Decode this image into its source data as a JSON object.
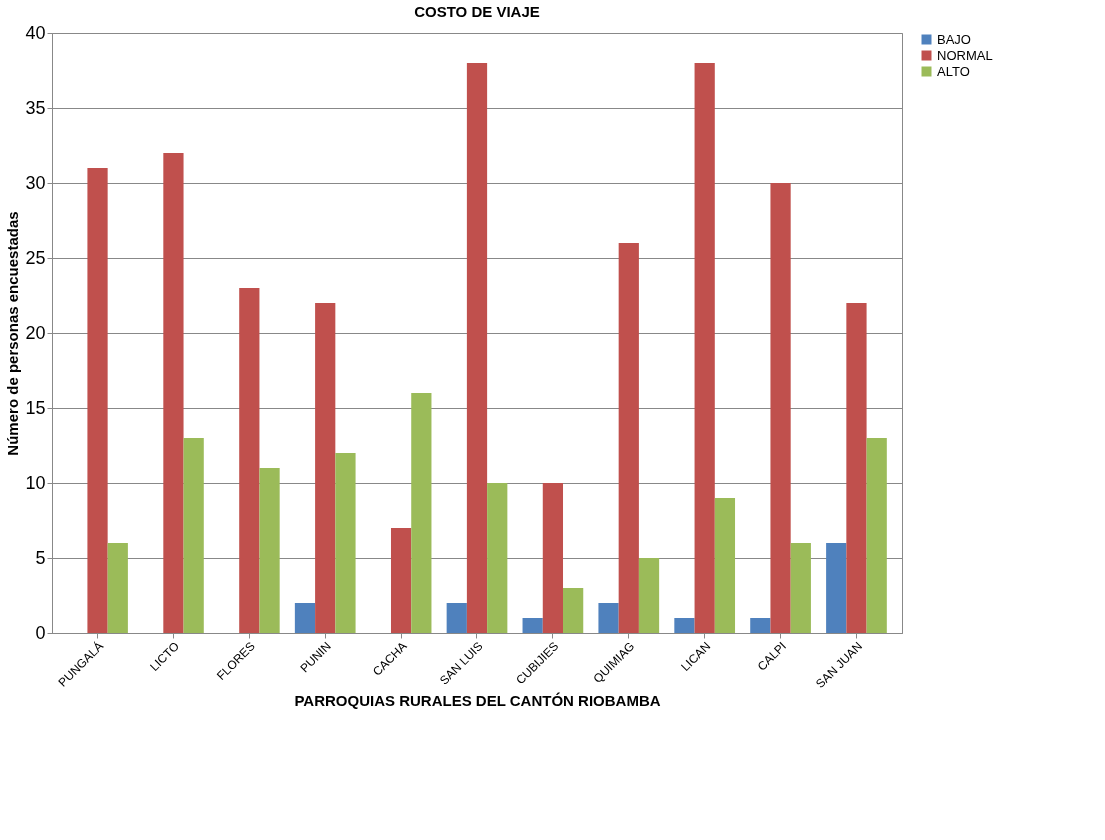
{
  "chart_data": {
    "type": "bar",
    "title": "COSTO DE VIAJE",
    "xlabel": "PARROQUIAS RURALES DEL CANTÓN RIOBAMBA",
    "ylabel": "Número de personas encuestadas",
    "categories": [
      "PUNGALÁ",
      "LICTO",
      "FLORES",
      "PUNIN",
      "CACHA",
      "SAN LUIS",
      "CUBIJIES",
      "QUIMIAG",
      "LICAN",
      "CALPI",
      "SAN JUAN"
    ],
    "series": [
      {
        "name": "BAJO",
        "color": "#4f81bd",
        "values": [
          0,
          0,
          0,
          2,
          0,
          2,
          1,
          2,
          1,
          1,
          6
        ]
      },
      {
        "name": "NORMAL",
        "color": "#c0504d",
        "values": [
          31,
          32,
          23,
          22,
          7,
          38,
          10,
          26,
          38,
          30,
          22
        ]
      },
      {
        "name": "ALTO",
        "color": "#9bbb59",
        "values": [
          6,
          13,
          11,
          12,
          16,
          10,
          3,
          5,
          9,
          6,
          13
        ]
      }
    ],
    "ylim": [
      0,
      40
    ],
    "yticks": [
      0,
      5,
      10,
      15,
      20,
      25,
      30,
      35,
      40
    ],
    "grid": "y",
    "legend": "right"
  }
}
